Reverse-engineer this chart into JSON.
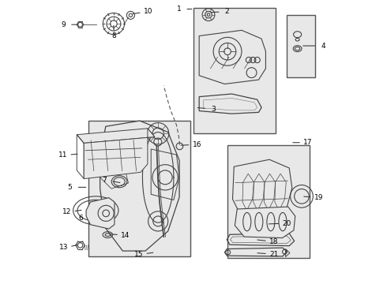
{
  "bg": "#ffffff",
  "lc": "#444444",
  "tc": "#000000",
  "fig_w": 4.9,
  "fig_h": 3.6,
  "dpi": 100,
  "boxes": {
    "b1": [
      0.13,
      0.095,
      0.49,
      0.575
    ],
    "b2": [
      0.5,
      0.53,
      0.79,
      0.975
    ],
    "b3": [
      0.62,
      0.09,
      0.91,
      0.49
    ],
    "b4": [
      0.83,
      0.73,
      0.93,
      0.95
    ]
  },
  "callouts": [
    [
      1,
      0.502,
      0.97,
      0.47,
      0.97
    ],
    [
      2,
      0.553,
      0.958,
      0.597,
      0.96
    ],
    [
      3,
      0.507,
      0.622,
      0.548,
      0.618
    ],
    [
      4,
      0.879,
      0.84,
      0.937,
      0.84
    ],
    [
      5,
      0.128,
      0.34,
      0.086,
      0.34
    ],
    [
      6,
      0.165,
      0.248,
      0.124,
      0.235
    ],
    [
      7,
      0.248,
      0.355,
      0.208,
      0.362
    ],
    [
      8,
      0.218,
      0.92,
      0.218,
      0.89
    ],
    [
      9,
      0.1,
      0.915,
      0.062,
      0.915
    ],
    [
      10,
      0.278,
      0.952,
      0.318,
      0.958
    ],
    [
      11,
      0.098,
      0.458,
      0.06,
      0.455
    ],
    [
      12,
      0.112,
      0.26,
      0.074,
      0.255
    ],
    [
      13,
      0.1,
      0.138,
      0.062,
      0.13
    ],
    [
      14,
      0.197,
      0.175,
      0.238,
      0.172
    ],
    [
      15,
      0.365,
      0.11,
      0.328,
      0.105
    ],
    [
      16,
      0.448,
      0.488,
      0.49,
      0.49
    ],
    [
      17,
      0.843,
      0.498,
      0.882,
      0.498
    ],
    [
      18,
      0.718,
      0.155,
      0.762,
      0.15
    ],
    [
      19,
      0.882,
      0.308,
      0.92,
      0.305
    ],
    [
      20,
      0.758,
      0.21,
      0.808,
      0.212
    ],
    [
      21,
      0.718,
      0.108,
      0.762,
      0.105
    ]
  ]
}
